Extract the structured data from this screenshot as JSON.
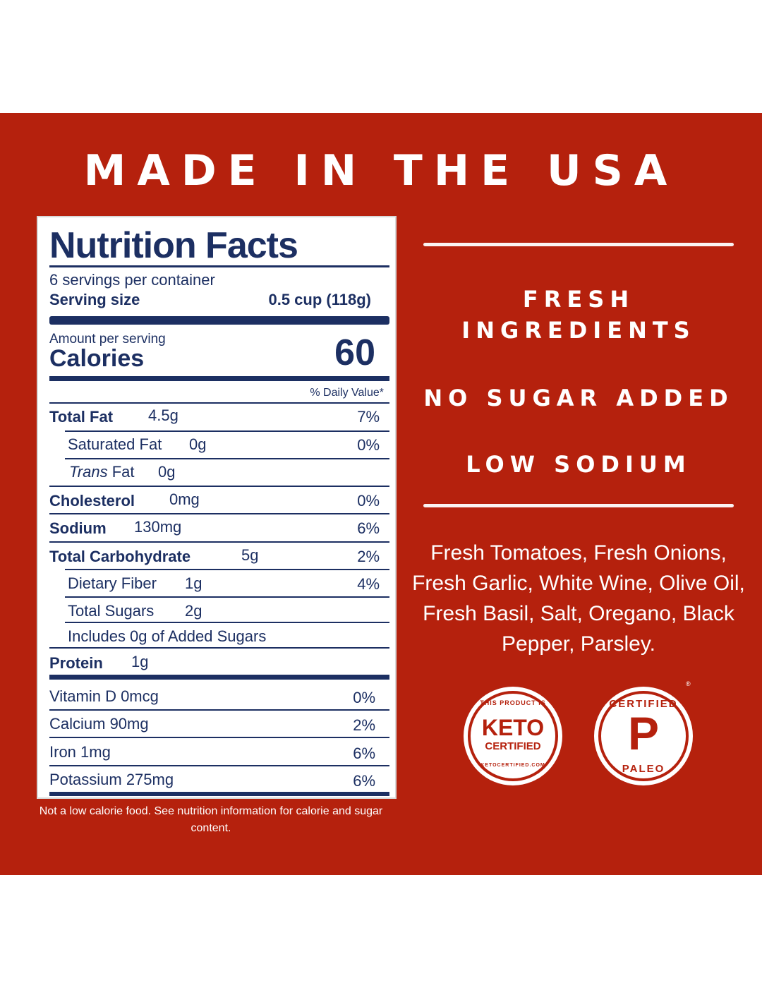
{
  "headline": "MADE IN THE USA",
  "nutrition": {
    "title": "Nutrition Facts",
    "servings": "6 servings per container",
    "serving_size_label": "Serving size",
    "serving_size_value": "0.5 cup (118g)",
    "amount_per_serving": "Amount per serving",
    "calories_label": "Calories",
    "calories_value": "60",
    "dv_header": "% Daily Value*",
    "rows": [
      {
        "name": "Total Fat",
        "amount": "4.5g",
        "dv": "7%"
      },
      {
        "name": "Saturated Fat",
        "amount": "0g",
        "dv": "0%"
      },
      {
        "name_italic": "Trans",
        "name": "Fat",
        "amount": "0g",
        "dv": ""
      },
      {
        "name": "Cholesterol",
        "amount": "0mg",
        "dv": "0%"
      },
      {
        "name": "Sodium",
        "amount": "130mg",
        "dv": "6%"
      },
      {
        "name": "Total Carbohydrate",
        "amount": "5g",
        "dv": "2%"
      },
      {
        "name": "Dietary Fiber",
        "amount": "1g",
        "dv": "4%"
      },
      {
        "name": "Total Sugars",
        "amount": "2g",
        "dv": ""
      },
      {
        "name": "Includes 0g of Added Sugars",
        "amount": "",
        "dv": ""
      },
      {
        "name": "Protein",
        "amount": "1g",
        "dv": ""
      }
    ],
    "vitamins": [
      {
        "name": "Vitamin D 0mcg",
        "dv": "0%"
      },
      {
        "name": "Calcium 90mg",
        "dv": "2%"
      },
      {
        "name": "Iron 1mg",
        "dv": "6%"
      },
      {
        "name": "Potassium 275mg",
        "dv": "6%"
      }
    ]
  },
  "footnote": "Not a low calorie food. See nutrition information for calorie and sugar content.",
  "claims": {
    "fresh": "FRESH INGREDIENTS",
    "sugar": "NO SUGAR ADDED",
    "sodium": "LOW SODIUM"
  },
  "ingredients": "Fresh Tomatoes, Fresh Onions, Fresh Garlic, White Wine, Olive Oil, Fresh Basil, Salt, Oregano, Black Pepper, Parsley.",
  "badges": {
    "keto_top": "THIS PRODUCT IS",
    "keto_main": "KETO",
    "keto_sub": "CERTIFIED",
    "keto_url": "KETOCERTIFIED.COM",
    "paleo_top": "CERTIFIED",
    "paleo_letter": "P",
    "paleo_bottom": "PALEO",
    "paleo_reg": "®"
  },
  "colors": {
    "brand_red": "#b5210d",
    "label_navy": "#1c2f62"
  }
}
